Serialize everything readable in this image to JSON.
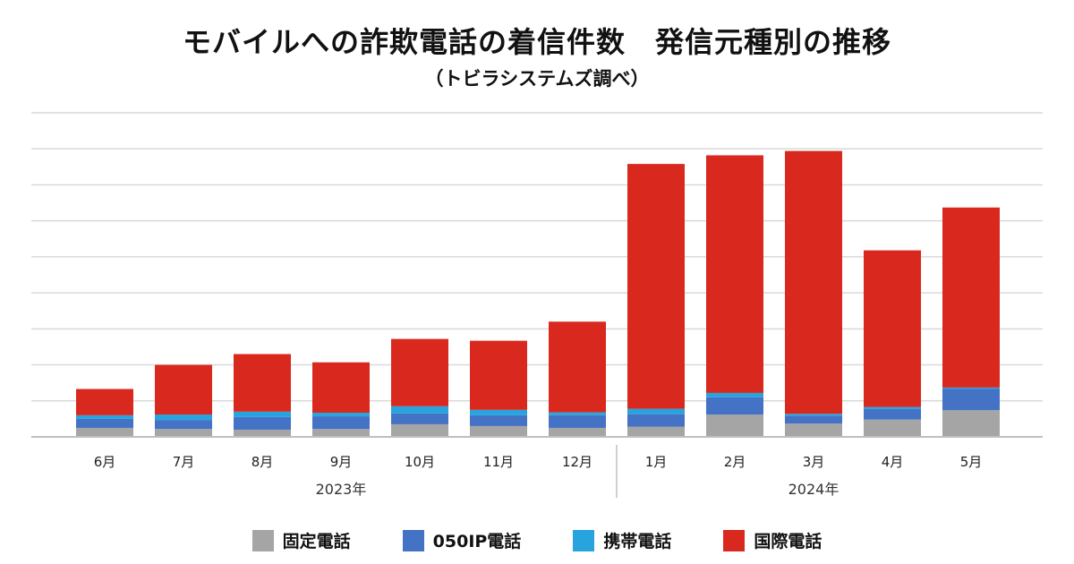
{
  "chart_data": {
    "type": "bar",
    "stacked": true,
    "title": "モバイルへの詐欺電話の着信件数　発信元種別の推移",
    "subtitle": "（トビラシステムズ調べ）",
    "categories": [
      "6月",
      "7月",
      "8月",
      "9月",
      "10月",
      "11月",
      "12月",
      "1月",
      "2月",
      "3月",
      "4月",
      "5月"
    ],
    "groups": [
      {
        "label": "2023年",
        "count": 7
      },
      {
        "label": "2024年",
        "count": 5
      }
    ],
    "ylim": [
      0,
      9
    ],
    "grid": true,
    "legend_position": "bottom",
    "series": [
      {
        "name": "固定電話",
        "color": "#a5a5a5",
        "values": [
          0.25,
          0.22,
          0.2,
          0.22,
          0.35,
          0.3,
          0.25,
          0.28,
          0.62,
          0.37,
          0.48,
          0.74
        ]
      },
      {
        "name": "050IP電話",
        "color": "#4472c4",
        "values": [
          0.25,
          0.25,
          0.35,
          0.35,
          0.3,
          0.3,
          0.35,
          0.35,
          0.48,
          0.22,
          0.3,
          0.6
        ]
      },
      {
        "name": "携帯電話",
        "color": "#27a3de",
        "values": [
          0.1,
          0.15,
          0.15,
          0.1,
          0.2,
          0.15,
          0.08,
          0.15,
          0.12,
          0.05,
          0.05,
          0.03
        ]
      },
      {
        "name": "国際電話",
        "color": "#d9291f",
        "values": [
          0.73,
          1.38,
          1.6,
          1.4,
          1.87,
          1.92,
          2.52,
          6.8,
          6.6,
          7.3,
          4.35,
          5.0
        ]
      }
    ]
  }
}
